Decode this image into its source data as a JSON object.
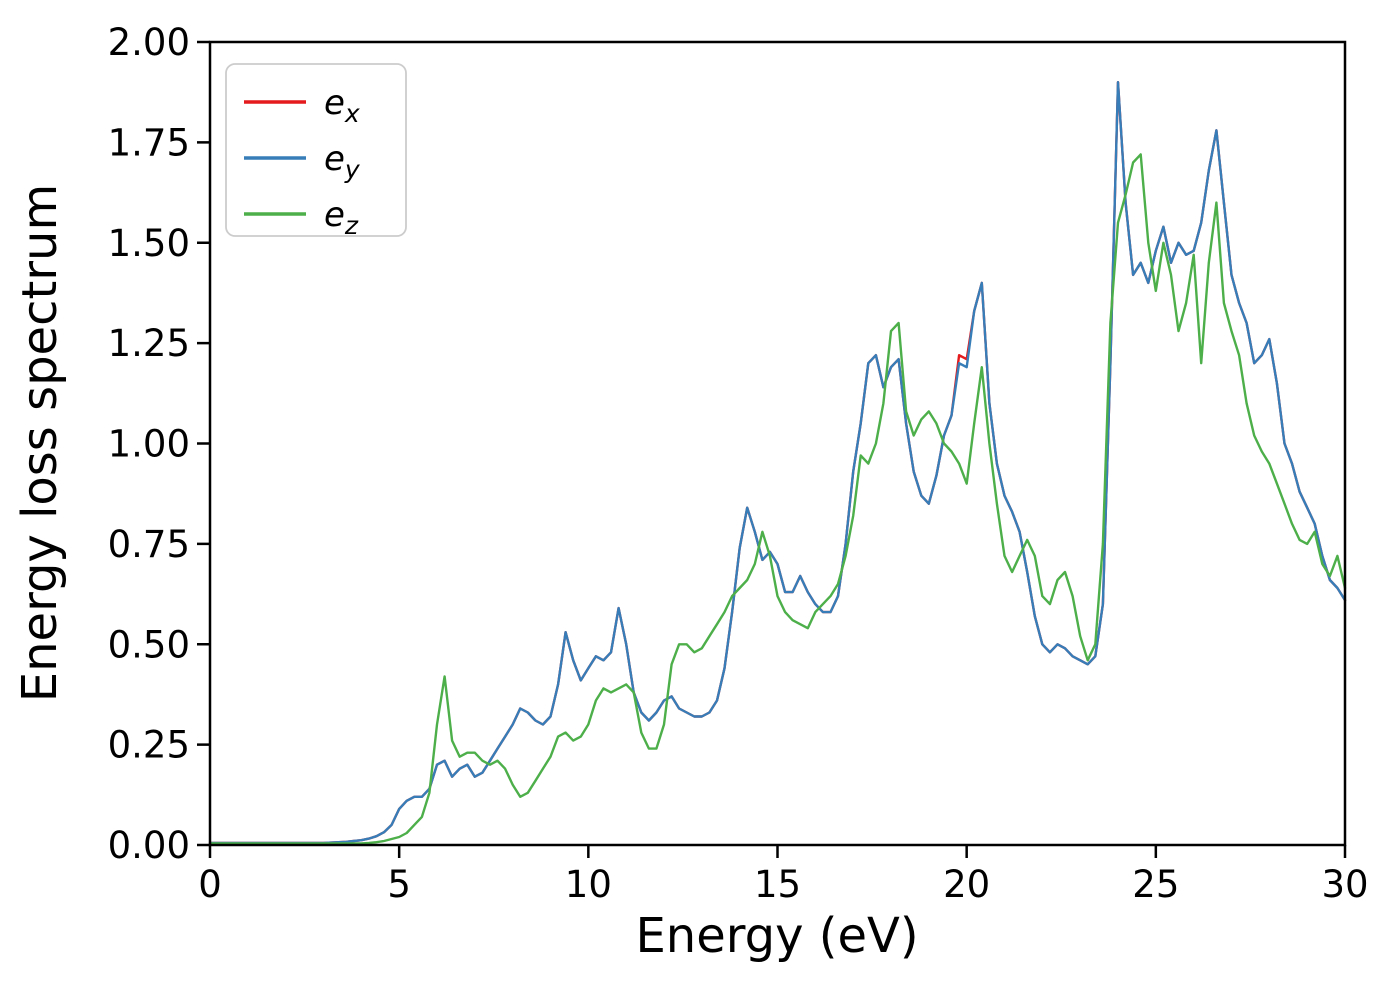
{
  "figure": {
    "background": "#ffffff"
  },
  "chart_data": {
    "type": "line",
    "title": "",
    "xlabel": "Energy (eV)",
    "ylabel": "Energy loss spectrum",
    "xlim": [
      0,
      30
    ],
    "ylim": [
      0.0,
      2.0
    ],
    "grid": false,
    "legend_position": "upper-left",
    "xticks": {
      "values": [
        0,
        5,
        10,
        15,
        20,
        25,
        30
      ],
      "labels": [
        "0",
        "5",
        "10",
        "15",
        "20",
        "25",
        "30"
      ]
    },
    "yticks": {
      "values": [
        0.0,
        0.25,
        0.5,
        0.75,
        1.0,
        1.25,
        1.5,
        1.75,
        2.0
      ],
      "labels": [
        "0.00",
        "0.25",
        "0.50",
        "0.75",
        "1.00",
        "1.25",
        "1.50",
        "1.75",
        "2.00"
      ]
    },
    "x": [
      0,
      0.2,
      0.4,
      0.6,
      0.8,
      1,
      1.2,
      1.4,
      1.6,
      1.8,
      2,
      2.2,
      2.4,
      2.6,
      2.8,
      3,
      3.2,
      3.4,
      3.6,
      3.8,
      4,
      4.2,
      4.4,
      4.6,
      4.8,
      5,
      5.2,
      5.4,
      5.6,
      5.8,
      6,
      6.2,
      6.4,
      6.6,
      6.8,
      7,
      7.2,
      7.4,
      7.6,
      7.8,
      8,
      8.2,
      8.4,
      8.6,
      8.8,
      9,
      9.2,
      9.4,
      9.6,
      9.8,
      10,
      10.2,
      10.4,
      10.6,
      10.8,
      11,
      11.2,
      11.4,
      11.6,
      11.8,
      12,
      12.2,
      12.4,
      12.6,
      12.8,
      13,
      13.2,
      13.4,
      13.6,
      13.8,
      14,
      14.2,
      14.4,
      14.6,
      14.8,
      15,
      15.2,
      15.4,
      15.6,
      15.8,
      16,
      16.2,
      16.4,
      16.6,
      16.8,
      17,
      17.2,
      17.4,
      17.6,
      17.8,
      18,
      18.2,
      18.4,
      18.6,
      18.8,
      19,
      19.2,
      19.4,
      19.6,
      19.8,
      20,
      20.2,
      20.4,
      20.6,
      20.8,
      21,
      21.2,
      21.4,
      21.6,
      21.8,
      22,
      22.2,
      22.4,
      22.6,
      22.8,
      23,
      23.2,
      23.4,
      23.6,
      23.8,
      24,
      24.2,
      24.4,
      24.6,
      24.8,
      25,
      25.2,
      25.4,
      25.6,
      25.8,
      26,
      26.2,
      26.4,
      26.6,
      26.8,
      27,
      27.2,
      27.4,
      27.6,
      27.8,
      28,
      28.2,
      28.4,
      28.6,
      28.8,
      29,
      29.2,
      29.4,
      29.6,
      29.8,
      30
    ],
    "series": [
      {
        "name": "e_x",
        "label_base": "e",
        "label_sub": "x",
        "color": "#e41a1c",
        "values": [
          0.005,
          0.005,
          0.005,
          0.005,
          0.005,
          0.005,
          0.005,
          0.005,
          0.005,
          0.005,
          0.005,
          0.005,
          0.005,
          0.005,
          0.005,
          0.005,
          0.006,
          0.007,
          0.008,
          0.01,
          0.012,
          0.016,
          0.022,
          0.032,
          0.05,
          0.09,
          0.11,
          0.12,
          0.12,
          0.14,
          0.2,
          0.21,
          0.17,
          0.19,
          0.2,
          0.17,
          0.18,
          0.21,
          0.24,
          0.27,
          0.3,
          0.34,
          0.33,
          0.31,
          0.3,
          0.32,
          0.4,
          0.53,
          0.46,
          0.41,
          0.44,
          0.47,
          0.46,
          0.48,
          0.59,
          0.5,
          0.38,
          0.33,
          0.31,
          0.33,
          0.36,
          0.37,
          0.34,
          0.33,
          0.32,
          0.32,
          0.33,
          0.36,
          0.44,
          0.58,
          0.74,
          0.84,
          0.78,
          0.71,
          0.73,
          0.7,
          0.63,
          0.63,
          0.67,
          0.63,
          0.6,
          0.58,
          0.58,
          0.62,
          0.75,
          0.93,
          1.05,
          1.2,
          1.22,
          1.14,
          1.19,
          1.21,
          1.05,
          0.93,
          0.87,
          0.85,
          0.92,
          1.02,
          1.07,
          1.22,
          1.21,
          1.33,
          1.4,
          1.1,
          0.95,
          0.87,
          0.83,
          0.78,
          0.68,
          0.57,
          0.5,
          0.48,
          0.5,
          0.49,
          0.47,
          0.46,
          0.45,
          0.47,
          0.6,
          1.2,
          1.9,
          1.6,
          1.42,
          1.45,
          1.4,
          1.48,
          1.54,
          1.45,
          1.5,
          1.47,
          1.48,
          1.55,
          1.68,
          1.78,
          1.6,
          1.42,
          1.35,
          1.3,
          1.2,
          1.22,
          1.26,
          1.15,
          1.0,
          0.95,
          0.88,
          0.84,
          0.8,
          0.72,
          0.66,
          0.64,
          0.61
        ]
      },
      {
        "name": "e_y",
        "label_base": "e",
        "label_sub": "y",
        "color": "#377eb8",
        "values": [
          0.005,
          0.005,
          0.005,
          0.005,
          0.005,
          0.005,
          0.005,
          0.005,
          0.005,
          0.005,
          0.005,
          0.005,
          0.005,
          0.005,
          0.005,
          0.005,
          0.006,
          0.007,
          0.008,
          0.01,
          0.012,
          0.016,
          0.022,
          0.032,
          0.05,
          0.09,
          0.11,
          0.12,
          0.12,
          0.14,
          0.2,
          0.21,
          0.17,
          0.19,
          0.2,
          0.17,
          0.18,
          0.21,
          0.24,
          0.27,
          0.3,
          0.34,
          0.33,
          0.31,
          0.3,
          0.32,
          0.4,
          0.53,
          0.46,
          0.41,
          0.44,
          0.47,
          0.46,
          0.48,
          0.59,
          0.5,
          0.38,
          0.33,
          0.31,
          0.33,
          0.36,
          0.37,
          0.34,
          0.33,
          0.32,
          0.32,
          0.33,
          0.36,
          0.44,
          0.58,
          0.74,
          0.84,
          0.78,
          0.71,
          0.73,
          0.7,
          0.63,
          0.63,
          0.67,
          0.63,
          0.6,
          0.58,
          0.58,
          0.62,
          0.75,
          0.93,
          1.05,
          1.2,
          1.22,
          1.14,
          1.19,
          1.21,
          1.05,
          0.93,
          0.87,
          0.85,
          0.92,
          1.02,
          1.07,
          1.2,
          1.19,
          1.33,
          1.4,
          1.1,
          0.95,
          0.87,
          0.83,
          0.78,
          0.68,
          0.57,
          0.5,
          0.48,
          0.5,
          0.49,
          0.47,
          0.46,
          0.45,
          0.47,
          0.6,
          1.2,
          1.9,
          1.6,
          1.42,
          1.45,
          1.4,
          1.48,
          1.54,
          1.45,
          1.5,
          1.47,
          1.48,
          1.55,
          1.68,
          1.78,
          1.6,
          1.42,
          1.35,
          1.3,
          1.2,
          1.22,
          1.26,
          1.15,
          1.0,
          0.95,
          0.88,
          0.84,
          0.8,
          0.72,
          0.66,
          0.64,
          0.61
        ]
      },
      {
        "name": "e_z",
        "label_base": "e",
        "label_sub": "z",
        "color": "#4daf4a",
        "values": [
          0.004,
          0.004,
          0.004,
          0.004,
          0.004,
          0.004,
          0.004,
          0.004,
          0.004,
          0.004,
          0.004,
          0.004,
          0.004,
          0.004,
          0.004,
          0.004,
          0.004,
          0.004,
          0.004,
          0.004,
          0.004,
          0.005,
          0.007,
          0.01,
          0.015,
          0.02,
          0.03,
          0.05,
          0.07,
          0.13,
          0.3,
          0.42,
          0.26,
          0.22,
          0.23,
          0.23,
          0.21,
          0.2,
          0.21,
          0.19,
          0.15,
          0.12,
          0.13,
          0.16,
          0.19,
          0.22,
          0.27,
          0.28,
          0.26,
          0.27,
          0.3,
          0.36,
          0.39,
          0.38,
          0.39,
          0.4,
          0.38,
          0.28,
          0.24,
          0.24,
          0.3,
          0.45,
          0.5,
          0.5,
          0.48,
          0.49,
          0.52,
          0.55,
          0.58,
          0.62,
          0.64,
          0.66,
          0.7,
          0.78,
          0.72,
          0.62,
          0.58,
          0.56,
          0.55,
          0.54,
          0.58,
          0.6,
          0.62,
          0.65,
          0.72,
          0.82,
          0.97,
          0.95,
          1.0,
          1.1,
          1.28,
          1.3,
          1.08,
          1.02,
          1.06,
          1.08,
          1.05,
          1.0,
          0.98,
          0.95,
          0.9,
          1.05,
          1.19,
          1.0,
          0.85,
          0.72,
          0.68,
          0.72,
          0.76,
          0.72,
          0.62,
          0.6,
          0.66,
          0.68,
          0.62,
          0.52,
          0.46,
          0.5,
          0.75,
          1.3,
          1.55,
          1.62,
          1.7,
          1.72,
          1.5,
          1.38,
          1.5,
          1.42,
          1.28,
          1.35,
          1.47,
          1.2,
          1.45,
          1.6,
          1.35,
          1.28,
          1.22,
          1.1,
          1.02,
          0.98,
          0.95,
          0.9,
          0.85,
          0.8,
          0.76,
          0.75,
          0.78,
          0.7,
          0.67,
          0.72,
          0.64
        ]
      }
    ]
  }
}
